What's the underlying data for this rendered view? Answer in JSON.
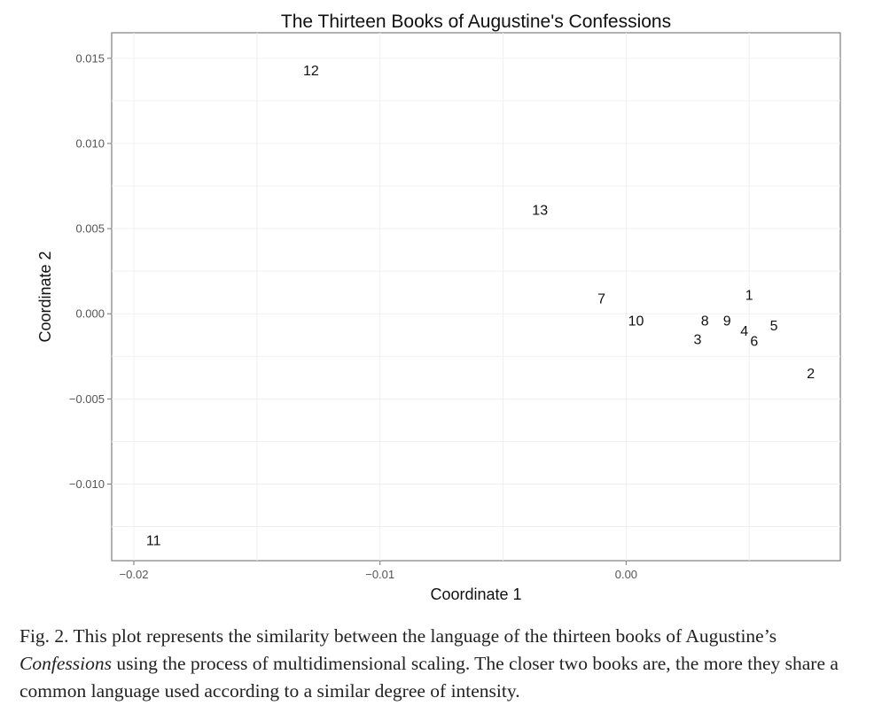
{
  "chart_data": {
    "type": "scatter",
    "title": "The Thirteen Books of Augustine's Confessions",
    "xlabel": "Coordinate 1",
    "ylabel": "Coordinate 2",
    "xlim": [
      -0.0209,
      0.0087
    ],
    "ylim": [
      -0.0145,
      0.0165
    ],
    "xticks": [
      -0.02,
      -0.01,
      0.0
    ],
    "xtick_labels": [
      "−0.02",
      "−0.01",
      "0.00"
    ],
    "yticks": [
      0.015,
      0.01,
      0.005,
      0.0,
      -0.005,
      -0.01
    ],
    "ytick_labels": [
      "0.015",
      "0.010",
      "0.005",
      "0.000",
      "−0.005",
      "−0.010"
    ],
    "grid": true,
    "points": [
      {
        "label": "1",
        "x": 0.005,
        "y": 0.0011
      },
      {
        "label": "2",
        "x": 0.0075,
        "y": -0.0035
      },
      {
        "label": "3",
        "x": 0.0029,
        "y": -0.0015
      },
      {
        "label": "4",
        "x": 0.0048,
        "y": -0.001
      },
      {
        "label": "5",
        "x": 0.006,
        "y": -0.0007
      },
      {
        "label": "6",
        "x": 0.0052,
        "y": -0.0016
      },
      {
        "label": "7",
        "x": -0.001,
        "y": 0.0009
      },
      {
        "label": "8",
        "x": 0.0032,
        "y": -0.0004
      },
      {
        "label": "9",
        "x": 0.0041,
        "y": -0.0004
      },
      {
        "label": "10",
        "x": 0.0004,
        "y": -0.0004
      },
      {
        "label": "11",
        "x": -0.0192,
        "y": -0.0133
      },
      {
        "label": "12",
        "x": -0.0128,
        "y": 0.0143
      },
      {
        "label": "13",
        "x": -0.0035,
        "y": 0.0061
      }
    ]
  },
  "caption": {
    "prefix": "Fig. 2. This plot represents the similarity between the language of the thirteen books of Augustine’s ",
    "italic": "Confessions",
    "suffix": " using the process of multidimensional scaling. The closer two books are, the more they share a common language used according to a similar degree of intensity."
  }
}
